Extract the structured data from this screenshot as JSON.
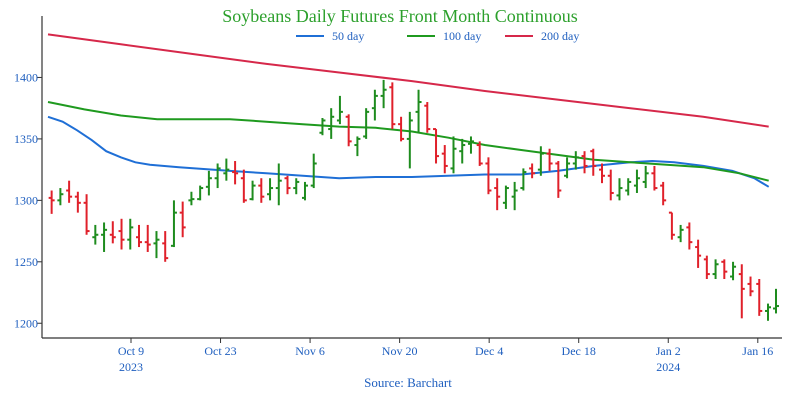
{
  "chart_data": {
    "type": "ohlc",
    "title": "Soybeans Daily Futures Front Month Continuous",
    "source": "Source: Barchart",
    "colors": {
      "up": "#1e8c1e",
      "down": "#e0202a",
      "ma50": "#1f6fd6",
      "ma100": "#1f9a1f",
      "ma200": "#d6284a",
      "axis": "#333333",
      "text": "#1f5fbf",
      "title": "#2ca02c"
    },
    "x_range": [
      0,
      100
    ],
    "ylim": [
      1188,
      1450
    ],
    "y_ticks": [
      1200,
      1250,
      1300,
      1350,
      1400
    ],
    "x_ticks": [
      {
        "x": 11.4,
        "label": "Oct 9",
        "year": "2023"
      },
      {
        "x": 23.7,
        "label": "Oct 23",
        "year": ""
      },
      {
        "x": 36.0,
        "label": "Nov 6",
        "year": ""
      },
      {
        "x": 48.3,
        "label": "Nov 20",
        "year": ""
      },
      {
        "x": 60.6,
        "label": "Dec 4",
        "year": ""
      },
      {
        "x": 72.9,
        "label": "Dec 18",
        "year": ""
      },
      {
        "x": 85.2,
        "label": "Jan 2",
        "year": "2024"
      },
      {
        "x": 97.5,
        "label": "Jan 16",
        "year": ""
      }
    ],
    "series": [
      {
        "key": "ma50",
        "name": "50 day",
        "points": [
          [
            0,
            1368
          ],
          [
            2,
            1364
          ],
          [
            4,
            1357
          ],
          [
            6,
            1349
          ],
          [
            8,
            1340
          ],
          [
            10,
            1335
          ],
          [
            12,
            1331
          ],
          [
            14,
            1329
          ],
          [
            18,
            1327
          ],
          [
            25,
            1324
          ],
          [
            30,
            1322
          ],
          [
            35,
            1320
          ],
          [
            40,
            1318
          ],
          [
            45,
            1319
          ],
          [
            50,
            1319
          ],
          [
            55,
            1320
          ],
          [
            60,
            1321
          ],
          [
            65,
            1321
          ],
          [
            70,
            1324
          ],
          [
            75,
            1328
          ],
          [
            80,
            1331
          ],
          [
            83,
            1332
          ],
          [
            86,
            1331
          ],
          [
            90,
            1328
          ],
          [
            94,
            1324
          ],
          [
            97,
            1318
          ],
          [
            99,
            1311
          ]
        ]
      },
      {
        "key": "ma100",
        "name": "100 day",
        "points": [
          [
            0,
            1380
          ],
          [
            5,
            1374
          ],
          [
            10,
            1369
          ],
          [
            15,
            1366
          ],
          [
            20,
            1366
          ],
          [
            25,
            1366
          ],
          [
            30,
            1364
          ],
          [
            35,
            1362
          ],
          [
            40,
            1360
          ],
          [
            45,
            1359
          ],
          [
            50,
            1356
          ],
          [
            55,
            1351
          ],
          [
            60,
            1345
          ],
          [
            65,
            1341
          ],
          [
            70,
            1337
          ],
          [
            75,
            1333
          ],
          [
            80,
            1331
          ],
          [
            85,
            1329
          ],
          [
            90,
            1327
          ],
          [
            95,
            1322
          ],
          [
            99,
            1316
          ]
        ]
      },
      {
        "key": "ma200",
        "name": "200 day",
        "points": [
          [
            0,
            1435
          ],
          [
            10,
            1427
          ],
          [
            20,
            1419
          ],
          [
            30,
            1411
          ],
          [
            40,
            1404
          ],
          [
            50,
            1397
          ],
          [
            60,
            1389
          ],
          [
            70,
            1382
          ],
          [
            80,
            1375
          ],
          [
            90,
            1368
          ],
          [
            99,
            1360
          ]
        ]
      }
    ],
    "bars": [
      [
        0.5,
        1302,
        1308,
        1289,
        1300
      ],
      [
        1.7,
        1300,
        1310,
        1296,
        1305
      ],
      [
        2.9,
        1308,
        1316,
        1298,
        1303
      ],
      [
        4.1,
        1303,
        1307,
        1290,
        1298
      ],
      [
        5.3,
        1298,
        1305,
        1272,
        1275
      ],
      [
        6.5,
        1270,
        1280,
        1264,
        1272
      ],
      [
        7.7,
        1272,
        1282,
        1258,
        1276
      ],
      [
        8.9,
        1272,
        1283,
        1265,
        1270
      ],
      [
        10.1,
        1275,
        1285,
        1260,
        1268
      ],
      [
        11.3,
        1268,
        1285,
        1260,
        1278
      ],
      [
        12.5,
        1270,
        1280,
        1262,
        1266
      ],
      [
        13.7,
        1266,
        1280,
        1258,
        1264
      ],
      [
        14.9,
        1265,
        1275,
        1253,
        1268
      ],
      [
        16.1,
        1265,
        1275,
        1250,
        1253
      ],
      [
        17.3,
        1263,
        1300,
        1262,
        1290
      ],
      [
        18.5,
        1290,
        1299,
        1270,
        1278
      ],
      [
        19.7,
        1300,
        1307,
        1296,
        1301
      ],
      [
        20.9,
        1301,
        1312,
        1300,
        1310
      ],
      [
        22.1,
        1311,
        1324,
        1304,
        1318
      ],
      [
        23.3,
        1318,
        1330,
        1310,
        1326
      ],
      [
        24.5,
        1322,
        1334,
        1316,
        1325
      ],
      [
        25.7,
        1323,
        1332,
        1313,
        1322
      ],
      [
        26.9,
        1318,
        1325,
        1298,
        1300
      ],
      [
        28.1,
        1301,
        1316,
        1300,
        1312
      ],
      [
        29.3,
        1312,
        1318,
        1298,
        1303
      ],
      [
        30.5,
        1305,
        1318,
        1300,
        1310
      ],
      [
        31.7,
        1310,
        1330,
        1296,
        1316
      ],
      [
        32.9,
        1318,
        1320,
        1305,
        1310
      ],
      [
        34.1,
        1310,
        1318,
        1305,
        1315
      ],
      [
        35.3,
        1302,
        1315,
        1300,
        1312
      ],
      [
        36.5,
        1312,
        1338,
        1310,
        1330
      ],
      [
        37.7,
        1355,
        1367,
        1353,
        1365
      ],
      [
        38.9,
        1358,
        1375,
        1350,
        1368
      ],
      [
        40.1,
        1365,
        1385,
        1362,
        1372
      ],
      [
        41.3,
        1368,
        1370,
        1344,
        1348
      ],
      [
        42.5,
        1345,
        1352,
        1336,
        1350
      ],
      [
        43.7,
        1352,
        1375,
        1350,
        1372
      ],
      [
        44.9,
        1375,
        1390,
        1365,
        1385
      ],
      [
        46.1,
        1385,
        1398,
        1375,
        1390
      ],
      [
        47.3,
        1392,
        1396,
        1358,
        1362
      ],
      [
        48.5,
        1362,
        1368,
        1348,
        1350
      ],
      [
        49.7,
        1350,
        1372,
        1326,
        1365
      ],
      [
        50.9,
        1372,
        1390,
        1355,
        1380
      ],
      [
        52.1,
        1377,
        1380,
        1355,
        1358
      ],
      [
        53.3,
        1358,
        1358,
        1330,
        1336
      ],
      [
        54.5,
        1338,
        1345,
        1322,
        1328
      ],
      [
        55.7,
        1326,
        1352,
        1322,
        1342
      ],
      [
        56.9,
        1340,
        1350,
        1330,
        1345
      ],
      [
        58.1,
        1346,
        1352,
        1338,
        1348
      ],
      [
        59.3,
        1345,
        1348,
        1328,
        1330
      ],
      [
        60.5,
        1330,
        1335,
        1305,
        1308
      ],
      [
        61.7,
        1310,
        1318,
        1292,
        1303
      ],
      [
        62.9,
        1298,
        1312,
        1293,
        1310
      ],
      [
        64.1,
        1303,
        1315,
        1292,
        1308
      ],
      [
        65.3,
        1310,
        1326,
        1308,
        1323
      ],
      [
        66.5,
        1326,
        1330,
        1318,
        1322
      ],
      [
        67.7,
        1325,
        1344,
        1320,
        1338
      ],
      [
        68.9,
        1338,
        1342,
        1324,
        1330
      ],
      [
        70.1,
        1330,
        1332,
        1302,
        1308
      ],
      [
        71.3,
        1320,
        1335,
        1318,
        1330
      ],
      [
        72.5,
        1330,
        1340,
        1325,
        1335
      ],
      [
        73.7,
        1336,
        1340,
        1322,
        1328
      ],
      [
        74.9,
        1340,
        1342,
        1320,
        1328
      ],
      [
        76.1,
        1325,
        1330,
        1314,
        1320
      ],
      [
        77.3,
        1320,
        1325,
        1300,
        1306
      ],
      [
        78.5,
        1304,
        1318,
        1300,
        1310
      ],
      [
        79.7,
        1308,
        1318,
        1304,
        1315
      ],
      [
        80.9,
        1312,
        1325,
        1306,
        1318
      ],
      [
        82.1,
        1315,
        1328,
        1310,
        1322
      ],
      [
        83.3,
        1322,
        1328,
        1308,
        1310
      ],
      [
        84.5,
        1312,
        1315,
        1296,
        1300
      ],
      [
        85.7,
        1290,
        1290,
        1268,
        1272
      ],
      [
        86.9,
        1270,
        1280,
        1266,
        1276
      ],
      [
        88.1,
        1278,
        1282,
        1260,
        1266
      ],
      [
        89.3,
        1262,
        1268,
        1245,
        1255
      ],
      [
        90.5,
        1252,
        1255,
        1236,
        1240
      ],
      [
        91.7,
        1240,
        1252,
        1236,
        1248
      ],
      [
        92.9,
        1250,
        1252,
        1236,
        1242
      ],
      [
        94.1,
        1238,
        1250,
        1235,
        1246
      ],
      [
        95.3,
        1240,
        1248,
        1204,
        1228
      ],
      [
        96.5,
        1232,
        1238,
        1222,
        1226
      ],
      [
        97.7,
        1232,
        1236,
        1206,
        1210
      ],
      [
        98.9,
        1210,
        1216,
        1202,
        1213
      ],
      [
        100,
        1212,
        1228,
        1208,
        1214
      ]
    ]
  }
}
